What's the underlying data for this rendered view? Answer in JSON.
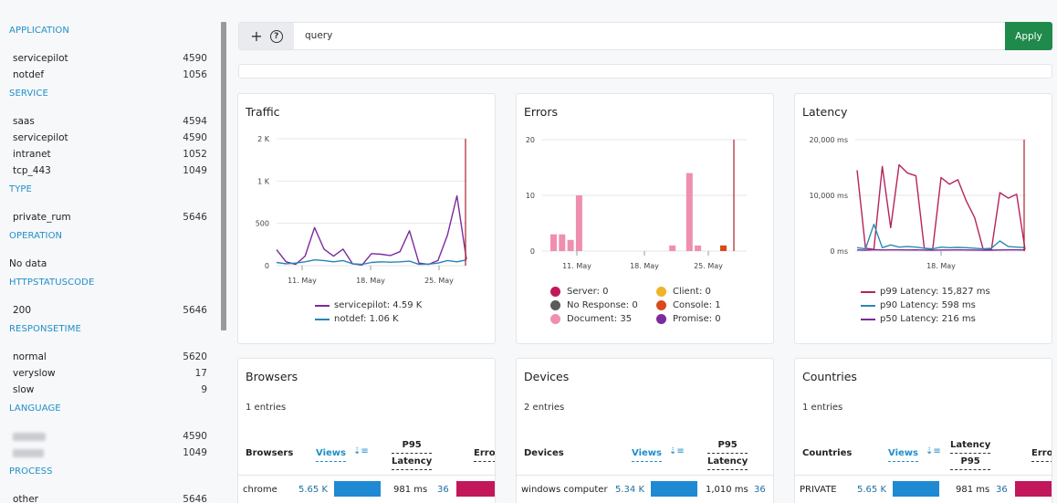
{
  "sidebar": {
    "sections": [
      {
        "title": "APPLICATION",
        "items": [
          {
            "label": "servicepilot",
            "count": "4590"
          },
          {
            "label": "notdef",
            "count": "1056"
          }
        ]
      },
      {
        "title": "SERVICE",
        "items": [
          {
            "label": "saas",
            "count": "4594"
          },
          {
            "label": "servicepilot",
            "count": "4590"
          },
          {
            "label": "intranet",
            "count": "1052"
          },
          {
            "label": "tcp_443",
            "count": "1049"
          }
        ]
      },
      {
        "title": "TYPE",
        "items": [
          {
            "label": "private_rum",
            "count": "5646"
          }
        ]
      },
      {
        "title": "OPERATION",
        "nodata": "No data"
      },
      {
        "title": "HTTPSTATUSCODE",
        "items": [
          {
            "label": "200",
            "count": "5646"
          }
        ]
      },
      {
        "title": "RESPONSETIME",
        "items": [
          {
            "label": "normal",
            "count": "5620"
          },
          {
            "label": "veryslow",
            "count": "17"
          },
          {
            "label": "slow",
            "count": "9"
          }
        ]
      },
      {
        "title": "LANGUAGE",
        "items": [
          {
            "label": "",
            "count": "4590"
          },
          {
            "label": "",
            "count": "1049"
          }
        ]
      },
      {
        "title": "PROCESS",
        "items": [
          {
            "label": "other",
            "count": "5646"
          }
        ]
      }
    ]
  },
  "query": {
    "icon_add": "plus-icon",
    "icon_help": "help-icon",
    "text": "query",
    "apply_label": "Apply",
    "apply_color": "#1f8a4c"
  },
  "traffic": {
    "title": "Traffic",
    "chart_data": {
      "type": "line",
      "title": "Traffic",
      "y_ticks": [
        "2 K",
        "1 K",
        "500",
        "0"
      ],
      "x_ticks": [
        "11. May",
        "18. May",
        "25. May"
      ],
      "ylim": [
        0,
        2000
      ],
      "series": [
        {
          "name": "servicepilot: 4.59 K",
          "color": "#7b2b9e",
          "values": [
            250,
            60,
            20,
            150,
            600,
            260,
            150,
            260,
            30,
            10,
            190,
            180,
            160,
            220,
            550,
            40,
            20,
            80,
            480,
            1100,
            100
          ]
        },
        {
          "name": "notdef: 1.06 K",
          "color": "#2a82b8",
          "values": [
            50,
            30,
            40,
            60,
            90,
            80,
            60,
            80,
            30,
            20,
            50,
            60,
            55,
            60,
            70,
            20,
            25,
            40,
            80,
            60,
            90
          ]
        }
      ],
      "marker": {
        "color": "#b0202a"
      }
    }
  },
  "errors": {
    "title": "Errors",
    "chart_data": {
      "type": "bar",
      "title": "Errors",
      "y_ticks": [
        "20",
        "10",
        "0"
      ],
      "x_ticks": [
        "11. May",
        "18. May",
        "25. May"
      ],
      "ylim": [
        0,
        20
      ],
      "document_values": [
        3,
        3,
        2,
        10,
        0,
        0,
        0,
        0,
        0,
        0,
        0,
        0,
        0,
        0,
        1,
        0,
        14,
        1,
        0,
        0,
        1
      ],
      "console_index": 20,
      "legend": [
        {
          "label": "Server: 0",
          "color": "#c2185b"
        },
        {
          "label": "Client: 0",
          "color": "#f0b429"
        },
        {
          "label": "No Response: 0",
          "color": "#5a5a5a"
        },
        {
          "label": "Console: 1",
          "color": "#d84a1b"
        },
        {
          "label": "Document: 35",
          "color": "#ef8fb0"
        },
        {
          "label": "Promise: 0",
          "color": "#7b2b9e"
        }
      ]
    }
  },
  "latency": {
    "title": "Latency",
    "chart_data": {
      "type": "line",
      "title": "Latency",
      "y_ticks": [
        "20,000 ms",
        "10,000 ms",
        "0 ms"
      ],
      "x_ticks": [
        "18. May"
      ],
      "ylim": [
        0,
        20000
      ],
      "series": [
        {
          "name": "p99 Latency: 15,827 ms",
          "color": "#b3245d",
          "values": [
            14500,
            500,
            300,
            15200,
            4200,
            15500,
            14000,
            13500,
            500,
            300,
            13200,
            12000,
            12800,
            9000,
            6000,
            400,
            300,
            10500,
            9500,
            10200,
            300
          ]
        },
        {
          "name": "p90 Latency: 598 ms",
          "color": "#2a8bb0",
          "values": [
            600,
            400,
            4800,
            600,
            1100,
            700,
            800,
            700,
            500,
            400,
            700,
            600,
            650,
            600,
            500,
            400,
            500,
            1800,
            800,
            700,
            600
          ]
        },
        {
          "name": "p50 Latency: 216 ms",
          "color": "#7b2b9e",
          "values": [
            200,
            150,
            250,
            200,
            220,
            210,
            200,
            210,
            180,
            150,
            200,
            190,
            210,
            200,
            180,
            150,
            170,
            200,
            210,
            220,
            200
          ]
        }
      ]
    }
  },
  "browsers": {
    "title": "Browsers",
    "entries": "1 entries",
    "col_name": "Browsers",
    "col_views": "Views",
    "col_p95": "P95",
    "col_latency": "Latency",
    "col_errors": "Erro",
    "row": {
      "name": "chrome",
      "views": "5.65 K",
      "latency": "981 ms",
      "errors": "36"
    }
  },
  "devices": {
    "title": "Devices",
    "entries": "2 entries",
    "col_name": "Devices",
    "col_views": "Views",
    "col_p95": "P95",
    "col_latency": "Latency",
    "row": {
      "name": "windows computer",
      "views": "5.34 K",
      "latency": "1,010 ms",
      "errors": "36"
    }
  },
  "countries": {
    "title": "Countries",
    "entries": "1 entries",
    "col_name": "Countries",
    "col_views": "Views",
    "col_latency": "Latency",
    "col_p95": "P95",
    "col_errors": "Erro",
    "row": {
      "name": "PRIVATE",
      "views": "5.65 K",
      "latency": "981 ms",
      "errors": "36"
    }
  }
}
